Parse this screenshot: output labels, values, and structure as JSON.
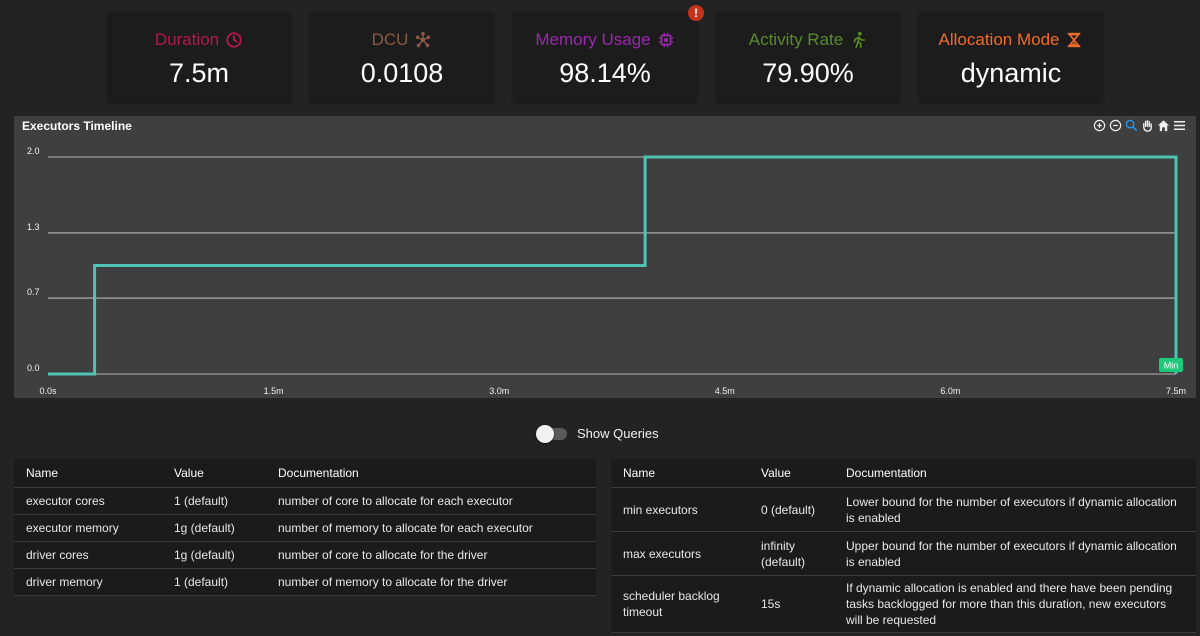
{
  "metrics": [
    {
      "label": "Duration",
      "value": "7.5m",
      "color": "#b8174d",
      "icon": "clock-icon"
    },
    {
      "label": "DCU",
      "value": "0.0108",
      "color": "#8a5a44",
      "icon": "network-icon"
    },
    {
      "label": "Memory Usage",
      "value": "98.14%",
      "color": "#9c27b0",
      "icon": "chip-icon"
    },
    {
      "label": "Activity Rate",
      "value": "79.90%",
      "color": "#5a8a2a",
      "icon": "running-person-icon"
    },
    {
      "label": "Allocation Mode",
      "value": "dynamic",
      "color": "#f26b2a",
      "icon": "hourglass-icon"
    }
  ],
  "warning_badge": "!",
  "chart": {
    "title": "Executors Timeline",
    "toolbar_icons": [
      "zoom-in-icon",
      "zoom-out-icon",
      "zoom-select-icon",
      "pan-icon",
      "home-icon",
      "menu-icon"
    ],
    "min_marker": "Min",
    "line_color": "#4fc3b5"
  },
  "chart_data": {
    "type": "line",
    "step": true,
    "x_ticks": [
      "0.0s",
      "1.5m",
      "3.0m",
      "4.5m",
      "6.0m",
      "7.5m"
    ],
    "y_ticks": [
      "0.0",
      "0.7",
      "1.3",
      "2.0"
    ],
    "xlim": [
      0,
      7.5
    ],
    "ylim": [
      0,
      2
    ],
    "x_unit": "m",
    "series": [
      {
        "x": [
          0,
          0.31,
          0.31,
          3.97,
          3.97,
          7.5,
          7.5
        ],
        "y": [
          0,
          0,
          1,
          1,
          2,
          2,
          0
        ]
      }
    ]
  },
  "toggle": {
    "label": "Show Queries",
    "on": false
  },
  "table_left": {
    "headers": [
      "Name",
      "Value",
      "Documentation"
    ],
    "rows": [
      [
        "executor cores",
        "1 (default)",
        "number of core to allocate for each executor"
      ],
      [
        "executor memory",
        "1g (default)",
        "number of memory to allocate for each executor"
      ],
      [
        "driver cores",
        "1g (default)",
        "number of core to allocate for the driver"
      ],
      [
        "driver memory",
        "1 (default)",
        "number of memory to allocate for the driver"
      ]
    ]
  },
  "table_right": {
    "headers": [
      "Name",
      "Value",
      "Documentation"
    ],
    "rows": [
      [
        "min executors",
        "0 (default)",
        "Lower bound for the number of executors if dynamic allocation is enabled"
      ],
      [
        "max executors",
        "infinity (default)",
        "Upper bound for the number of executors if dynamic allocation is enabled"
      ],
      [
        "scheduler backlog timeout",
        "15s",
        "If dynamic allocation is enabled and there have been pending tasks backlogged for more than this duration, new executors will be requested"
      ]
    ]
  }
}
